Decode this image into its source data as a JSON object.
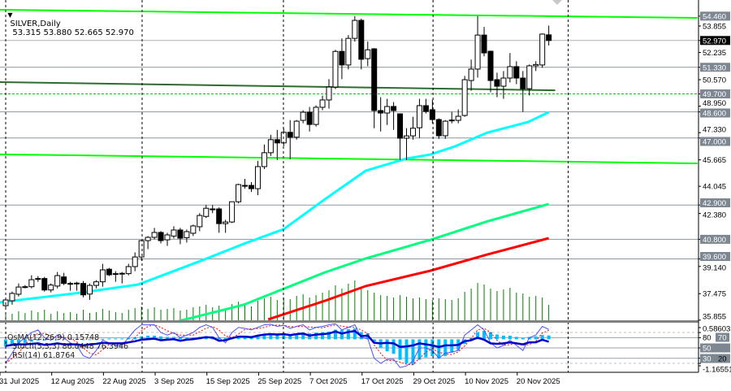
{
  "header": {
    "symbol": "SILVER,Daily",
    "ohlc_text": "53.315 53.880 52.665 52.970",
    "menu_icon": "triangle-down-icon"
  },
  "indicator_header": {
    "osma": "OsMA(12,26,9) 0.15748",
    "stoch": "Stoch(5,3,3) 86.0448 76.3946",
    "rsi": "RSI(14) 61.8764"
  },
  "colors": {
    "background": "#ffffff",
    "bull_body": "#ffffff",
    "bear_body": "#000000",
    "ma_fast": "#00ffff",
    "ma_mid": "#00ff7f",
    "ma_slow": "#ff0000",
    "trendline": "#00ff00",
    "level": "#8c96a0",
    "volume": "#008000",
    "osma": "#00bfff",
    "stoch_main": "#5050ff",
    "stoch_signal": "#ff0000",
    "rsi": "#0000cd",
    "label_box": "#7d8791",
    "current_box": "#000000"
  },
  "chart_data": {
    "type": "candlestick",
    "title": "SILVER,Daily",
    "ylim": [
      35.79,
      55.45
    ],
    "grid": false,
    "price_ticks": [
      "53.855",
      "52.235",
      "50.570",
      "48.950",
      "47.330",
      "45.665",
      "44.045",
      "42.380",
      "39.140",
      "37.475",
      "35.855"
    ],
    "price_levels": [
      {
        "label": "54.460",
        "value": 54.46,
        "style": "label"
      },
      {
        "label": "52.970",
        "value": 52.97,
        "style": "current"
      },
      {
        "label": "51.330",
        "value": 51.33,
        "style": "solid"
      },
      {
        "label": "49.700",
        "value": 49.7,
        "style": "dashed-green"
      },
      {
        "label": "48.600",
        "value": 48.6,
        "style": "solid"
      },
      {
        "label": "47.000",
        "value": 47.0,
        "style": "solid"
      },
      {
        "label": "42.900",
        "value": 42.9,
        "style": "solid"
      },
      {
        "label": "40.800",
        "value": 40.8,
        "style": "solid"
      },
      {
        "label": "39.600",
        "value": 39.6,
        "style": "solid"
      }
    ],
    "trendlines": [
      {
        "from": [
          0.1,
          54.85
        ],
        "to": [
          108,
          54.35
        ],
        "color": "#00ff00"
      },
      {
        "from": [
          0.1,
          46.0
        ],
        "to": [
          108,
          45.45
        ],
        "color": "#00ff00"
      },
      {
        "from": [
          0.1,
          50.42
        ],
        "to": [
          86,
          49.92
        ],
        "color": "#2e6b2e"
      }
    ],
    "date_ticks": [
      {
        "label": "31 Jul 2025",
        "bar": 1
      },
      {
        "label": "12 Aug 2025",
        "bar": 9
      },
      {
        "label": "22 Aug 2025",
        "bar": 17
      },
      {
        "label": "3 Sep 2025",
        "bar": 25
      },
      {
        "label": "15 Sep 2025",
        "bar": 33
      },
      {
        "label": "25 Sep 2025",
        "bar": 41
      },
      {
        "label": "7 Oct 2025",
        "bar": 49
      },
      {
        "label": "17 Oct 2025",
        "bar": 57
      },
      {
        "label": "29 Oct 2025",
        "bar": 65
      },
      {
        "label": "10 Nov 2025",
        "bar": 73
      },
      {
        "label": "20 Nov 2025",
        "bar": 81
      }
    ],
    "ohlc": [
      [
        36.74,
        37.2,
        36.5,
        37.09
      ],
      [
        37.04,
        37.6,
        36.8,
        37.49
      ],
      [
        37.44,
        38.1,
        37.3,
        37.88
      ],
      [
        37.88,
        38.0,
        37.8,
        37.9
      ],
      [
        37.9,
        38.6,
        37.8,
        38.33
      ],
      [
        38.38,
        38.55,
        38.2,
        38.4
      ],
      [
        38.4,
        38.5,
        37.6,
        37.7
      ],
      [
        37.7,
        38.1,
        37.55,
        38.0
      ],
      [
        37.94,
        38.8,
        37.8,
        38.58
      ],
      [
        38.5,
        38.75,
        38.0,
        38.1
      ],
      [
        38.1,
        38.2,
        37.65,
        38.1
      ],
      [
        38.1,
        38.2,
        37.65,
        38.12
      ],
      [
        38.1,
        38.25,
        37.25,
        37.4
      ],
      [
        37.45,
        38.1,
        37.1,
        37.98
      ],
      [
        37.98,
        38.3,
        37.8,
        38.2
      ],
      [
        38.2,
        39.3,
        37.9,
        38.93
      ],
      [
        38.97,
        39.05,
        38.55,
        38.63
      ],
      [
        38.7,
        38.85,
        38.2,
        38.7
      ],
      [
        38.7,
        38.8,
        38.1,
        38.72
      ],
      [
        38.7,
        39.3,
        38.6,
        39.13
      ],
      [
        39.13,
        40.0,
        38.85,
        39.72
      ],
      [
        39.72,
        40.75,
        39.5,
        40.72
      ],
      [
        40.72,
        41.0,
        40.2,
        40.92
      ],
      [
        40.92,
        41.5,
        40.8,
        41.22
      ],
      [
        41.22,
        41.3,
        40.55,
        40.72
      ],
      [
        40.77,
        41.2,
        40.4,
        41.07
      ],
      [
        41.0,
        41.6,
        40.85,
        41.37
      ],
      [
        41.37,
        41.5,
        40.5,
        40.87
      ],
      [
        40.9,
        41.4,
        40.6,
        41.27
      ],
      [
        41.17,
        41.7,
        41.0,
        41.62
      ],
      [
        41.57,
        42.4,
        41.3,
        42.26
      ],
      [
        42.2,
        42.9,
        42.1,
        42.7
      ],
      [
        42.66,
        42.9,
        42.4,
        42.66
      ],
      [
        42.66,
        42.75,
        41.2,
        41.76
      ],
      [
        41.76,
        42.0,
        41.2,
        41.86
      ],
      [
        41.86,
        43.1,
        41.8,
        43.1
      ],
      [
        43.1,
        44.2,
        43.0,
        44.15
      ],
      [
        44.1,
        44.5,
        43.9,
        44.1
      ],
      [
        44.1,
        44.3,
        43.7,
        43.9
      ],
      [
        43.9,
        45.6,
        43.5,
        45.25
      ],
      [
        45.25,
        46.6,
        45.1,
        46.1
      ],
      [
        46.1,
        47.2,
        45.9,
        46.9
      ],
      [
        46.9,
        47.5,
        45.65,
        46.7
      ],
      [
        46.7,
        47.6,
        46.5,
        47.35
      ],
      [
        47.35,
        48.1,
        45.7,
        47.05
      ],
      [
        47.05,
        48.1,
        46.9,
        48.03
      ],
      [
        48.08,
        48.7,
        47.9,
        48.58
      ],
      [
        48.58,
        48.9,
        47.4,
        47.83
      ],
      [
        47.83,
        49.0,
        47.7,
        48.88
      ],
      [
        48.88,
        49.6,
        48.7,
        49.33
      ],
      [
        49.33,
        50.6,
        48.8,
        50.12
      ],
      [
        50.12,
        52.4,
        50.0,
        52.3
      ],
      [
        52.3,
        53.1,
        50.6,
        51.47
      ],
      [
        51.47,
        53.3,
        51.2,
        53.1
      ],
      [
        53.1,
        54.46,
        52.9,
        54.2
      ],
      [
        54.2,
        54.3,
        51.2,
        51.82
      ],
      [
        51.86,
        52.9,
        51.4,
        52.4
      ],
      [
        52.46,
        52.5,
        47.6,
        48.68
      ],
      [
        48.68,
        49.5,
        47.4,
        48.53
      ],
      [
        48.53,
        49.4,
        47.8,
        48.93
      ],
      [
        48.93,
        49.2,
        47.5,
        48.68
      ],
      [
        48.48,
        48.5,
        45.65,
        46.99
      ],
      [
        46.99,
        47.6,
        45.65,
        47.13
      ],
      [
        47.13,
        48.3,
        46.9,
        47.6
      ],
      [
        47.63,
        49.4,
        47.0,
        48.98
      ],
      [
        48.98,
        49.4,
        48.5,
        48.63
      ],
      [
        48.73,
        49.35,
        47.9,
        48.13
      ],
      [
        48.13,
        48.2,
        46.95,
        47.14
      ],
      [
        47.14,
        48.1,
        46.95,
        48.03
      ],
      [
        48.08,
        48.6,
        47.9,
        48.1
      ],
      [
        48.08,
        48.75,
        47.9,
        48.33
      ],
      [
        48.38,
        50.8,
        48.3,
        50.57
      ],
      [
        50.52,
        51.8,
        49.9,
        51.22
      ],
      [
        51.22,
        54.46,
        50.7,
        53.3
      ],
      [
        53.3,
        53.8,
        52.0,
        52.21
      ],
      [
        52.31,
        52.35,
        49.8,
        50.52
      ],
      [
        50.57,
        51.0,
        49.5,
        50.17
      ],
      [
        50.17,
        51.1,
        49.4,
        50.67
      ],
      [
        50.67,
        52.2,
        50.4,
        51.37
      ],
      [
        51.37,
        51.7,
        50.3,
        50.67
      ],
      [
        50.67,
        51.1,
        48.6,
        50.02
      ],
      [
        50.02,
        51.5,
        49.6,
        51.42
      ],
      [
        51.42,
        51.7,
        51.1,
        51.5
      ],
      [
        51.47,
        53.4,
        51.3,
        53.36
      ],
      [
        53.315,
        53.88,
        52.665,
        52.97
      ]
    ],
    "moving_averages": [
      {
        "color": "#00ffff",
        "points": [
          [
            0,
            36.94
          ],
          [
            12.7,
            37.54
          ],
          [
            21.5,
            38.03
          ],
          [
            31.5,
            39.53
          ],
          [
            37.8,
            40.52
          ],
          [
            44,
            41.42
          ],
          [
            50.4,
            43.26
          ],
          [
            56.7,
            45.0
          ],
          [
            63,
            45.74
          ],
          [
            66.7,
            45.99
          ],
          [
            70.5,
            46.49
          ],
          [
            75.5,
            47.33
          ],
          [
            81.8,
            47.98
          ],
          [
            85,
            48.58
          ]
        ]
      },
      {
        "color": "#00ff7f",
        "points": [
          [
            27.8,
            35.8
          ],
          [
            37.8,
            36.79
          ],
          [
            50.4,
            38.78
          ],
          [
            56.7,
            39.63
          ],
          [
            66.7,
            40.77
          ],
          [
            75.5,
            41.9
          ],
          [
            85,
            42.96
          ]
        ]
      },
      {
        "color": "#ff0000",
        "points": [
          [
            41.6,
            35.9
          ],
          [
            50.4,
            37.04
          ],
          [
            56.7,
            37.94
          ],
          [
            66.7,
            38.88
          ],
          [
            75.5,
            39.87
          ],
          [
            85,
            40.87
          ]
        ]
      }
    ],
    "volume": [
      20,
      18,
      24,
      20,
      26,
      22,
      28,
      18,
      24,
      20,
      22,
      18,
      28,
      20,
      22,
      30,
      26,
      22,
      20,
      28,
      32,
      36,
      30,
      34,
      28,
      30,
      32,
      26,
      28,
      34,
      36,
      40,
      34,
      38,
      30,
      42,
      48,
      40,
      36,
      50,
      56,
      60,
      52,
      58,
      54,
      62,
      66,
      58,
      64,
      70,
      76,
      88,
      80,
      92,
      100,
      84,
      76,
      70,
      64,
      62,
      58,
      64,
      60,
      56,
      58,
      54,
      52,
      56,
      54,
      52,
      56,
      72,
      80,
      94,
      90,
      80,
      74,
      78,
      82,
      70,
      68,
      60,
      62,
      58,
      40
    ],
    "indicators": {
      "osma": {
        "range": [
          -1.16551,
          0.58603
        ],
        "top_label": "0.58603",
        "bottom_label": "-1.16551",
        "values": [
          -0.3,
          -0.25,
          -0.2,
          -0.15,
          -0.1,
          -0.05,
          -0.05,
          0,
          0,
          0.02,
          0.02,
          0.02,
          0,
          0,
          0,
          0.02,
          0.03,
          0.03,
          0.03,
          0.05,
          0.08,
          0.12,
          0.15,
          0.15,
          0.12,
          0.1,
          0.1,
          0.08,
          0.08,
          0.08,
          0.1,
          0.12,
          0.12,
          0.08,
          0.05,
          0.08,
          0.12,
          0.12,
          0.1,
          0.15,
          0.2,
          0.25,
          0.25,
          0.25,
          0.22,
          0.25,
          0.28,
          0.25,
          0.28,
          0.3,
          0.32,
          0.4,
          0.38,
          0.42,
          0.45,
          0.3,
          0.25,
          -0.1,
          -0.35,
          -0.5,
          -0.6,
          -0.85,
          -1.0,
          -1.05,
          -0.85,
          -0.75,
          -0.7,
          -0.8,
          -0.7,
          -0.55,
          -0.45,
          -0.2,
          0.05,
          0.3,
          0.35,
          0.3,
          0.2,
          0.15,
          0.15,
          0.1,
          0.05,
          0.1,
          0.12,
          0.18,
          0.16
        ]
      },
      "levels": [
        "80",
        "70",
        "50",
        "30",
        "20"
      ],
      "stoch_main": [
        20,
        40,
        60,
        70,
        80,
        85,
        70,
        65,
        75,
        70,
        60,
        55,
        35,
        30,
        45,
        65,
        60,
        55,
        55,
        70,
        85,
        95,
        95,
        95,
        80,
        75,
        80,
        70,
        75,
        80,
        90,
        95,
        90,
        70,
        60,
        80,
        90,
        88,
        85,
        90,
        95,
        96,
        92,
        94,
        88,
        92,
        95,
        85,
        90,
        92,
        95,
        97,
        85,
        90,
        95,
        70,
        68,
        30,
        20,
        28,
        28,
        12,
        15,
        25,
        50,
        50,
        45,
        30,
        40,
        42,
        45,
        75,
        85,
        95,
        85,
        60,
        50,
        55,
        65,
        55,
        45,
        70,
        75,
        92,
        86
      ],
      "rsi": [
        54,
        56,
        57,
        57,
        58,
        59,
        56,
        57,
        59,
        57,
        57,
        57,
        55,
        57,
        58,
        60,
        59,
        59,
        59,
        61,
        63,
        66,
        67,
        68,
        65,
        66,
        67,
        64,
        66,
        67,
        69,
        71,
        70,
        64,
        65,
        69,
        72,
        72,
        71,
        74,
        76,
        77,
        76,
        77,
        75,
        77,
        78,
        74,
        76,
        77,
        78,
        82,
        78,
        81,
        83,
        73,
        74,
        60,
        59,
        60,
        59,
        52,
        53,
        55,
        59,
        57,
        55,
        52,
        55,
        55,
        56,
        63,
        65,
        70,
        66,
        59,
        58,
        59,
        61,
        59,
        57,
        61,
        61,
        66,
        62
      ]
    }
  }
}
